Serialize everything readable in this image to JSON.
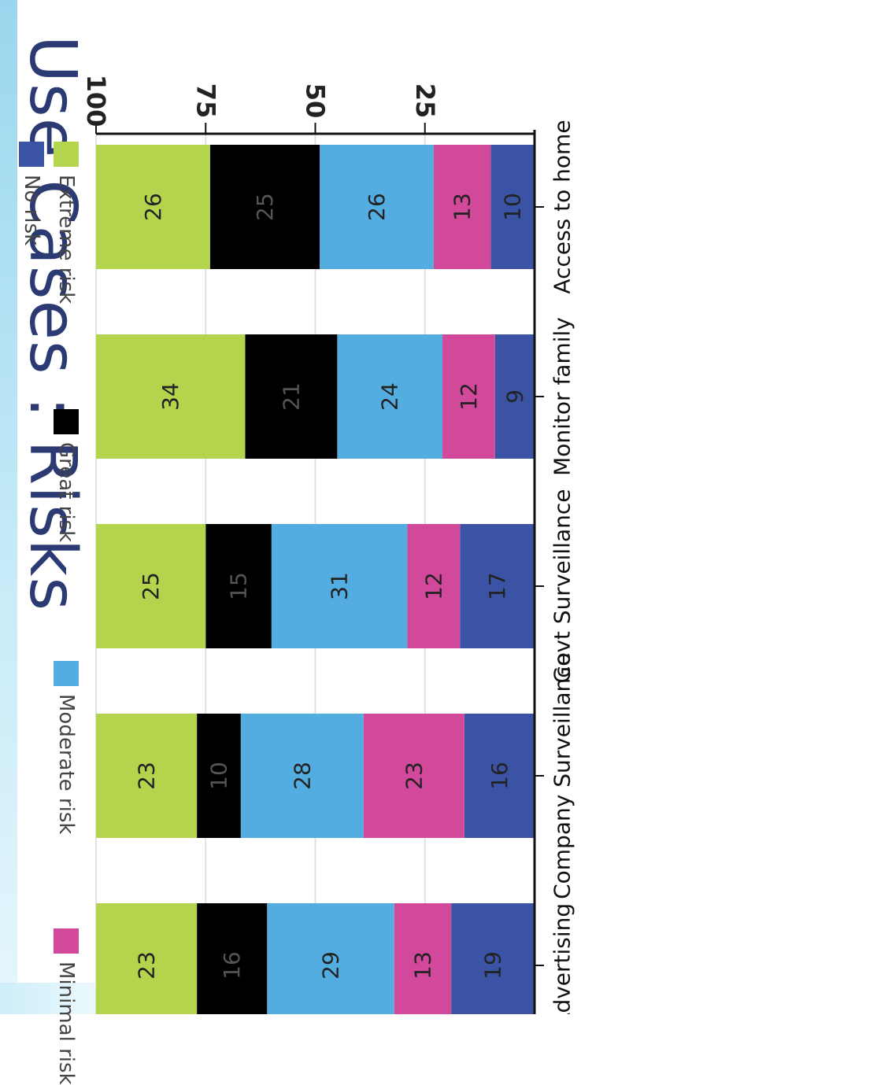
{
  "title": "Use Cases : Risks",
  "chart_data": {
    "type": "bar",
    "stacked": true,
    "orientation": "vertical",
    "categories": [
      "Access to home",
      "Monitor family",
      "Govt Surveillance",
      "Company Surveillance",
      "Advertising"
    ],
    "series": [
      {
        "name": "No risk",
        "color": "#3a53a4",
        "values": [
          10,
          9,
          17,
          16,
          19
        ]
      },
      {
        "name": "Minimal risk",
        "color": "#d2489a",
        "values": [
          13,
          12,
          12,
          23,
          13
        ]
      },
      {
        "name": "Moderate risk",
        "color": "#54ade1",
        "values": [
          26,
          24,
          31,
          28,
          29
        ]
      },
      {
        "name": "Great risk",
        "color": "#000000",
        "values": [
          25,
          21,
          15,
          10,
          16
        ]
      },
      {
        "name": "Extreme risk",
        "color": "#b5d44e",
        "values": [
          26,
          34,
          25,
          23,
          23
        ]
      }
    ],
    "y_ticks": [
      "25",
      "50",
      "75",
      "100"
    ],
    "ylim": [
      0,
      100
    ],
    "grid": true,
    "legend_position": "bottom",
    "legend_order": [
      "Extreme risk",
      "Great risk",
      "Moderate risk",
      "Minimal risk",
      "No risk"
    ]
  }
}
